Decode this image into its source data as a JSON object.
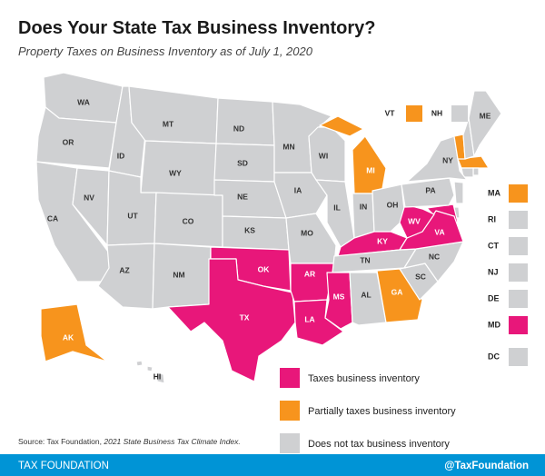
{
  "header": {
    "title": "Does Your State Tax Business Inventory?",
    "subtitle": "Property Taxes on Business Inventory as of July 1, 2020"
  },
  "legend": [
    {
      "key": "taxes",
      "label": "Taxes business inventory",
      "color": "#e8177a"
    },
    {
      "key": "partial",
      "label": "Partially taxes business inventory",
      "color": "#f7941d"
    },
    {
      "key": "none",
      "label": "Does not tax business inventory",
      "color": "#cfd0d2"
    }
  ],
  "states": [
    {
      "label": "WA",
      "status": "none"
    },
    {
      "label": "OR",
      "status": "none"
    },
    {
      "label": "CA",
      "status": "none"
    },
    {
      "label": "NV",
      "status": "none"
    },
    {
      "label": "ID",
      "status": "none"
    },
    {
      "label": "MT",
      "status": "none"
    },
    {
      "label": "WY",
      "status": "none"
    },
    {
      "label": "UT",
      "status": "none"
    },
    {
      "label": "CO",
      "status": "none"
    },
    {
      "label": "AZ",
      "status": "none"
    },
    {
      "label": "NM",
      "status": "none"
    },
    {
      "label": "ND",
      "status": "none"
    },
    {
      "label": "SD",
      "status": "none"
    },
    {
      "label": "NE",
      "status": "none"
    },
    {
      "label": "KS",
      "status": "none"
    },
    {
      "label": "OK",
      "status": "taxes"
    },
    {
      "label": "TX",
      "status": "taxes"
    },
    {
      "label": "MN",
      "status": "none"
    },
    {
      "label": "IA",
      "status": "none"
    },
    {
      "label": "MO",
      "status": "none"
    },
    {
      "label": "AR",
      "status": "taxes"
    },
    {
      "label": "LA",
      "status": "taxes"
    },
    {
      "label": "WI",
      "status": "none"
    },
    {
      "label": "IL",
      "status": "none"
    },
    {
      "label": "MI",
      "status": "partial"
    },
    {
      "label": "IN",
      "status": "none"
    },
    {
      "label": "OH",
      "status": "none"
    },
    {
      "label": "KY",
      "status": "taxes"
    },
    {
      "label": "TN",
      "status": "none"
    },
    {
      "label": "MS",
      "status": "taxes"
    },
    {
      "label": "AL",
      "status": "none"
    },
    {
      "label": "GA",
      "status": "partial"
    },
    {
      "label": "SC",
      "status": "none"
    },
    {
      "label": "NC",
      "status": "none"
    },
    {
      "label": "VA",
      "status": "taxes"
    },
    {
      "label": "WV",
      "status": "taxes"
    },
    {
      "label": "PA",
      "status": "none"
    },
    {
      "label": "NY",
      "status": "none"
    },
    {
      "label": "VT",
      "status": "partial"
    },
    {
      "label": "NH",
      "status": "none"
    },
    {
      "label": "ME",
      "status": "none"
    },
    {
      "label": "AK",
      "status": "partial"
    },
    {
      "label": "HI",
      "status": "none"
    }
  ],
  "small_states": [
    {
      "label": "MA",
      "status": "partial"
    },
    {
      "label": "RI",
      "status": "none"
    },
    {
      "label": "CT",
      "status": "none"
    },
    {
      "label": "NJ",
      "status": "none"
    },
    {
      "label": "DE",
      "status": "none"
    },
    {
      "label": "MD",
      "status": "taxes"
    },
    {
      "label": "DC",
      "status": "none"
    }
  ],
  "source": {
    "prefix": "Source: Tax Foundation, ",
    "citation": "2021 State Business Tax Climate Index."
  },
  "footer": {
    "left": "TAX FOUNDATION",
    "right": "@TaxFoundation"
  }
}
